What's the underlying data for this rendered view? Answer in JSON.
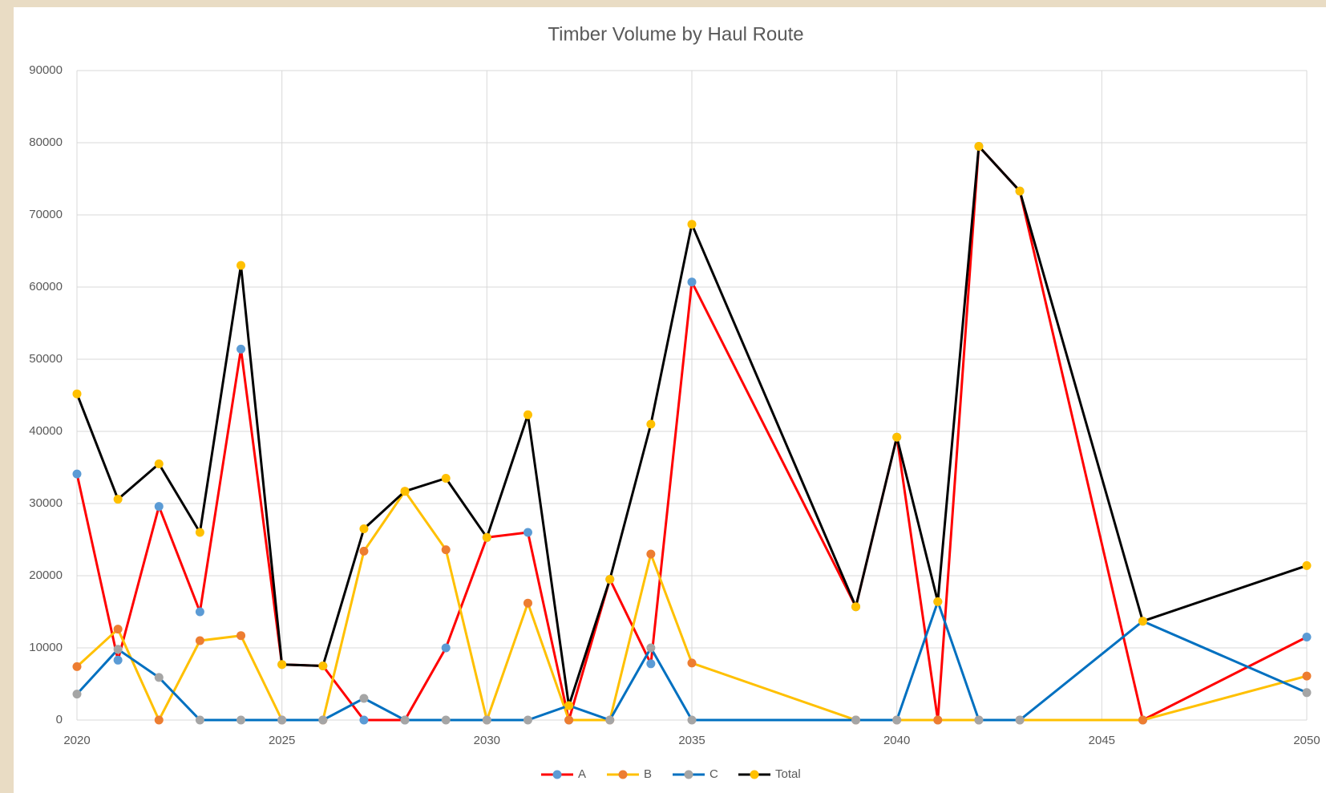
{
  "chart_data": {
    "type": "line",
    "title": "Timber Volume by Haul Route",
    "x": [
      2020,
      2021,
      2022,
      2023,
      2024,
      2025,
      2026,
      2027,
      2028,
      2029,
      2030,
      2031,
      2032,
      2033,
      2034,
      2035,
      2039,
      2040,
      2041,
      2042,
      2043,
      2046,
      2050
    ],
    "series": [
      {
        "name": "A",
        "color": "#ff0000",
        "marker_color": "#5b9bd5",
        "values": [
          34100,
          8300,
          29600,
          15000,
          51400,
          7700,
          7500,
          0,
          0,
          10000,
          25300,
          26000,
          0,
          19500,
          7800,
          60700,
          15700,
          39200,
          0,
          79500,
          73300,
          0,
          11500
        ]
      },
      {
        "name": "B",
        "color": "#ffc000",
        "marker_color": "#ed7d31",
        "values": [
          7400,
          12600,
          0,
          11000,
          11700,
          0,
          0,
          23400,
          31700,
          23600,
          0,
          16200,
          0,
          0,
          23000,
          7900,
          0,
          0,
          0,
          0,
          0,
          0,
          6100
        ]
      },
      {
        "name": "C",
        "color": "#0070c0",
        "marker_color": "#a5a5a5",
        "values": [
          3600,
          9800,
          5900,
          0,
          0,
          0,
          0,
          3000,
          0,
          0,
          0,
          0,
          2000,
          0,
          10000,
          0,
          0,
          0,
          16400,
          0,
          0,
          13700,
          3800
        ]
      },
      {
        "name": "Total",
        "color": "#000000",
        "marker_color": "#ffc000",
        "values": [
          45200,
          30600,
          35500,
          26000,
          63000,
          7700,
          7500,
          26500,
          31700,
          33500,
          25300,
          42300,
          2000,
          19500,
          41000,
          68700,
          15700,
          39200,
          16400,
          79500,
          73300,
          13700,
          21400
        ]
      }
    ],
    "xlim": [
      2020,
      2050
    ],
    "xticks": [
      2020,
      2025,
      2030,
      2035,
      2040,
      2045,
      2050
    ],
    "ylim": [
      0,
      90000
    ],
    "yticks": [
      0,
      10000,
      20000,
      30000,
      40000,
      50000,
      60000,
      70000,
      80000,
      90000
    ],
    "grid": true,
    "legend": "bottom"
  }
}
